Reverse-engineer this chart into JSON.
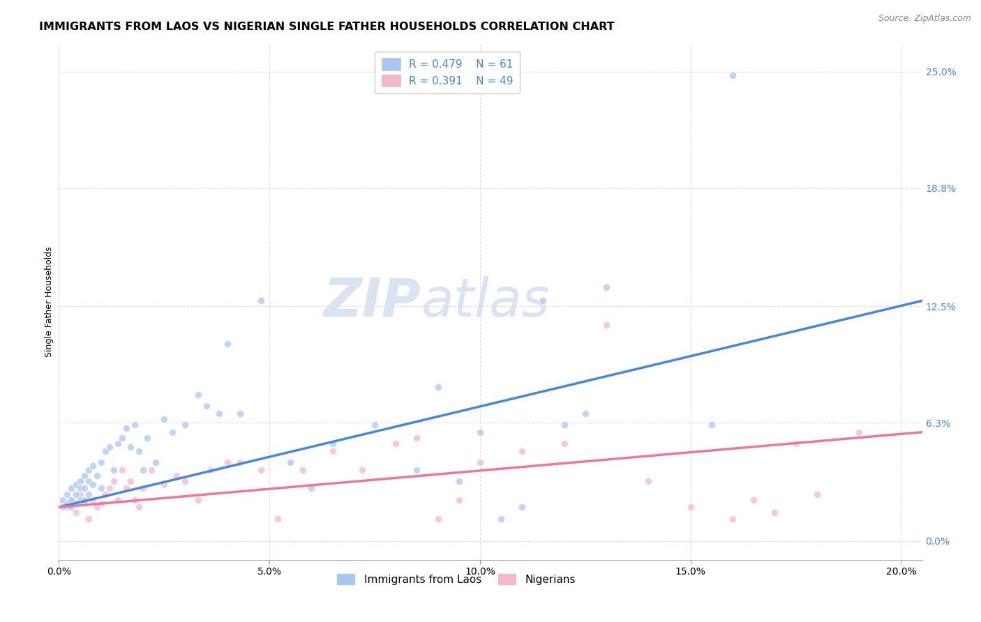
{
  "title": "IMMIGRANTS FROM LAOS VS NIGERIAN SINGLE FATHER HOUSEHOLDS CORRELATION CHART",
  "source": "Source: ZipAtlas.com",
  "xlabel_ticks": [
    "0.0%",
    "5.0%",
    "10.0%",
    "15.0%",
    "20.0%"
  ],
  "xlabel_tick_vals": [
    0.0,
    0.05,
    0.1,
    0.15,
    0.2
  ],
  "ylabel": "Single Father Households",
  "ylabel_ticks_right": [
    "25.0%",
    "18.8%",
    "12.5%",
    "6.3%",
    "0.0%"
  ],
  "ylabel_tick_vals_right": [
    0.25,
    0.188,
    0.125,
    0.063,
    0.0
  ],
  "ylabel_ticks_right_display": [
    "25.0%",
    "18.8%",
    "12.5%",
    "6.3%",
    "0.0%"
  ],
  "xlim": [
    0.0,
    0.205
  ],
  "ylim": [
    -0.01,
    0.265
  ],
  "blue_color": "#A8C8F0",
  "pink_color": "#F5B8CB",
  "blue_line_color": "#4488DD",
  "pink_line_color": "#EE7799",
  "right_axis_color": "#4488DD",
  "legend_text_color": "#4488DD",
  "legend_R_blue": "0.479",
  "legend_N_blue": "61",
  "legend_R_pink": "0.391",
  "legend_N_pink": "49",
  "watermark_zip": "ZIP",
  "watermark_atlas": "atlas",
  "blue_scatter_x": [
    0.001,
    0.001,
    0.002,
    0.002,
    0.003,
    0.003,
    0.003,
    0.004,
    0.004,
    0.004,
    0.005,
    0.005,
    0.005,
    0.006,
    0.006,
    0.006,
    0.007,
    0.007,
    0.007,
    0.008,
    0.008,
    0.009,
    0.01,
    0.01,
    0.011,
    0.012,
    0.013,
    0.014,
    0.015,
    0.016,
    0.017,
    0.018,
    0.019,
    0.02,
    0.021,
    0.023,
    0.025,
    0.027,
    0.03,
    0.033,
    0.035,
    0.038,
    0.04,
    0.043,
    0.048,
    0.055,
    0.06,
    0.065,
    0.075,
    0.085,
    0.09,
    0.095,
    0.1,
    0.105,
    0.11,
    0.115,
    0.12,
    0.125,
    0.13,
    0.155,
    0.16
  ],
  "blue_scatter_y": [
    0.022,
    0.018,
    0.025,
    0.02,
    0.028,
    0.022,
    0.018,
    0.03,
    0.025,
    0.02,
    0.032,
    0.028,
    0.022,
    0.035,
    0.028,
    0.022,
    0.038,
    0.032,
    0.025,
    0.04,
    0.03,
    0.035,
    0.042,
    0.028,
    0.048,
    0.05,
    0.038,
    0.052,
    0.055,
    0.06,
    0.05,
    0.062,
    0.048,
    0.038,
    0.055,
    0.042,
    0.065,
    0.058,
    0.062,
    0.078,
    0.072,
    0.068,
    0.105,
    0.068,
    0.128,
    0.042,
    0.028,
    0.052,
    0.062,
    0.038,
    0.082,
    0.032,
    0.058,
    0.012,
    0.018,
    0.128,
    0.062,
    0.068,
    0.135,
    0.062,
    0.248
  ],
  "pink_scatter_x": [
    0.001,
    0.002,
    0.003,
    0.004,
    0.005,
    0.006,
    0.007,
    0.008,
    0.009,
    0.01,
    0.011,
    0.012,
    0.013,
    0.014,
    0.015,
    0.016,
    0.017,
    0.018,
    0.019,
    0.02,
    0.022,
    0.025,
    0.028,
    0.03,
    0.033,
    0.036,
    0.04,
    0.043,
    0.048,
    0.052,
    0.058,
    0.065,
    0.072,
    0.08,
    0.085,
    0.09,
    0.095,
    0.1,
    0.11,
    0.12,
    0.13,
    0.14,
    0.15,
    0.16,
    0.165,
    0.17,
    0.175,
    0.18,
    0.19
  ],
  "pink_scatter_y": [
    0.02,
    0.018,
    0.022,
    0.015,
    0.025,
    0.02,
    0.012,
    0.022,
    0.018,
    0.02,
    0.025,
    0.028,
    0.032,
    0.022,
    0.038,
    0.028,
    0.032,
    0.022,
    0.018,
    0.028,
    0.038,
    0.03,
    0.035,
    0.032,
    0.022,
    0.038,
    0.042,
    0.042,
    0.038,
    0.012,
    0.038,
    0.048,
    0.038,
    0.052,
    0.055,
    0.012,
    0.022,
    0.042,
    0.048,
    0.052,
    0.115,
    0.032,
    0.018,
    0.012,
    0.022,
    0.015,
    0.052,
    0.025,
    0.058
  ],
  "blue_trend_x": [
    0.0,
    0.205
  ],
  "blue_trend_y": [
    0.018,
    0.128
  ],
  "pink_trend_x": [
    0.0,
    0.205
  ],
  "pink_trend_y": [
    0.018,
    0.058
  ],
  "title_fontsize": 11.5,
  "source_fontsize": 9,
  "axis_label_fontsize": 9,
  "tick_fontsize": 10,
  "legend_fontsize": 11,
  "watermark_fontsize_zip": 55,
  "watermark_fontsize_atlas": 55,
  "watermark_color": "#D8E4F2",
  "scatter_size": 55,
  "scatter_alpha": 0.75,
  "scatter_linewidth": 0.8,
  "scatter_edgecolor_blue": "#A0BEE8",
  "scatter_edgecolor_pink": "#F0A0BB",
  "background_color": "#FFFFFF",
  "grid_color": "#CCCCCC",
  "grid_style": "--",
  "grid_alpha": 0.6,
  "grid_linewidth": 0.8
}
